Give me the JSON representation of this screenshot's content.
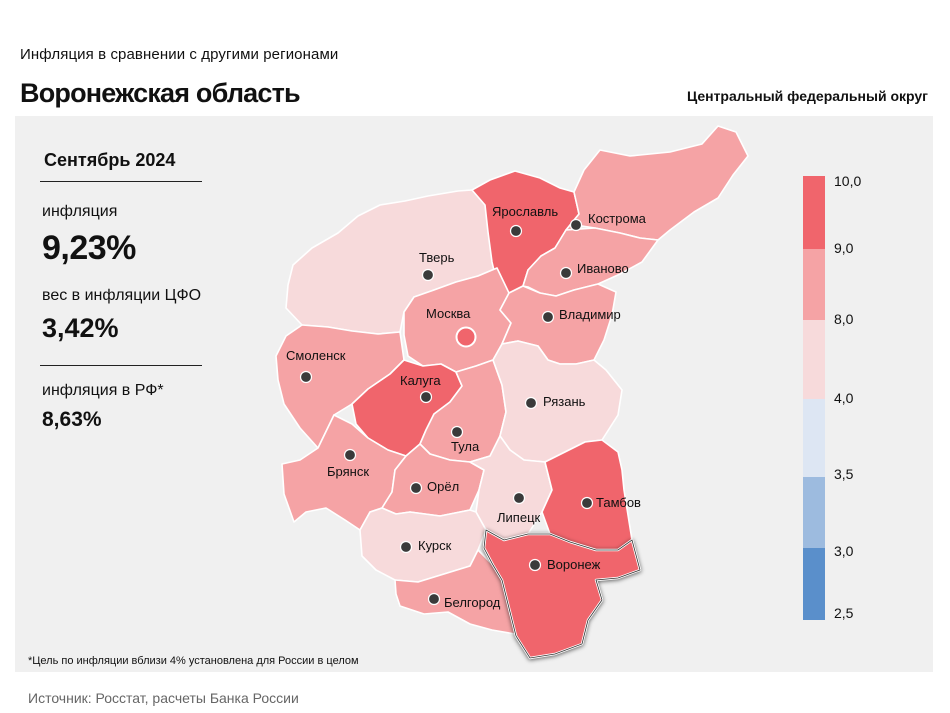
{
  "header": {
    "kicker": "Инфляция  в сравнении  с другими  регионами",
    "title": "Воронежская область",
    "district": "Центральный федеральный округ"
  },
  "stats": {
    "period": "Сентябрь 2024",
    "inflation_label": "инфляция",
    "inflation_value": "9,23%",
    "weight_label": "вес в инфляции  ЦФО",
    "weight_value": "3,42%",
    "rf_label": "инфляция  в РФ*",
    "rf_value": "8,63%"
  },
  "footnote": "*Цель по инфляции вблизи 4% установлена для России в целом",
  "source": "Источник: Росстат, расчеты Банка России",
  "legend": {
    "ticks": [
      "10,0",
      "9,0",
      "8,0",
      "4,0",
      "3,5",
      "3,0",
      "2,5"
    ],
    "colors": [
      "#f0656c",
      "#f5a3a5",
      "#f7dadb",
      "#dde6f3",
      "#9dbbdf",
      "#5a8fcb"
    ]
  },
  "map": {
    "highlighted_region": "Воронеж",
    "regions": [
      {
        "name": "Тверь",
        "color": "#f7dadb"
      },
      {
        "name": "Ярославль",
        "color": "#f0656c"
      },
      {
        "name": "Кострома",
        "color": "#f5a3a5"
      },
      {
        "name": "Иваново",
        "color": "#f5a3a5"
      },
      {
        "name": "Владимир",
        "color": "#f5a3a5"
      },
      {
        "name": "Москва",
        "color": "#f5a3a5"
      },
      {
        "name": "Смоленск",
        "color": "#f5a3a5"
      },
      {
        "name": "Калуга",
        "color": "#f0656c"
      },
      {
        "name": "Тула",
        "color": "#f5a3a5"
      },
      {
        "name": "Рязань",
        "color": "#f7dadb"
      },
      {
        "name": "Брянск",
        "color": "#f5a3a5"
      },
      {
        "name": "Орёл",
        "color": "#f5a3a5"
      },
      {
        "name": "Липецк",
        "color": "#f7dadb"
      },
      {
        "name": "Тамбов",
        "color": "#f0656c"
      },
      {
        "name": "Курск",
        "color": "#f7dadb"
      },
      {
        "name": "Белгород",
        "color": "#f5a3a5"
      },
      {
        "name": "Воронеж",
        "color": "#f0656c"
      }
    ]
  }
}
